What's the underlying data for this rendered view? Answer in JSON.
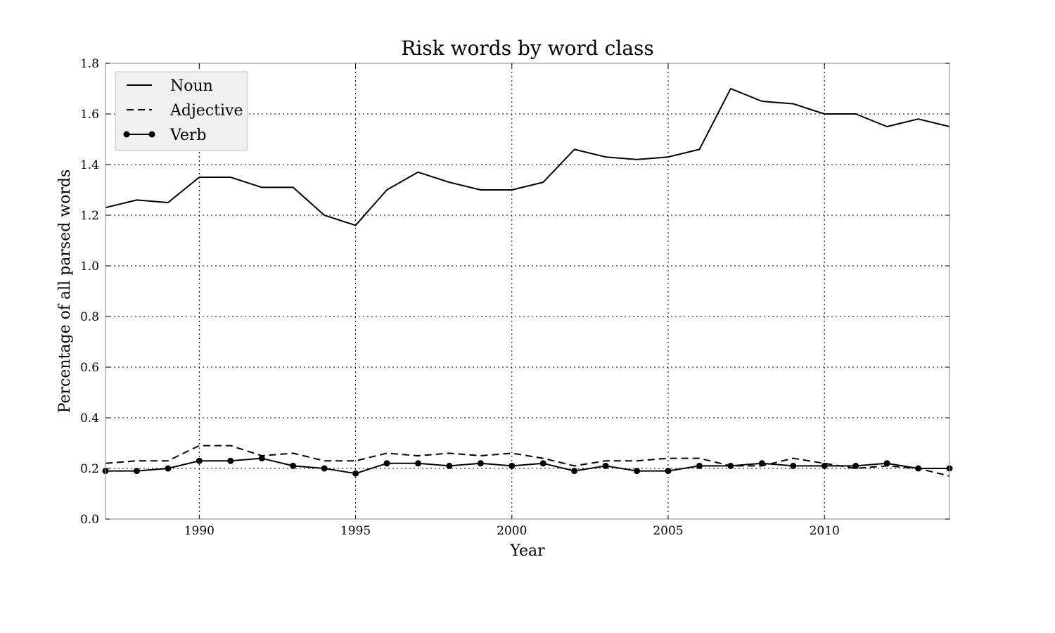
{
  "chart_data": {
    "type": "line",
    "title": "Risk words by word class",
    "xlabel": "Year",
    "ylabel": "Percentage of all parsed words",
    "xlim": [
      1987,
      2014
    ],
    "ylim": [
      0.0,
      1.8
    ],
    "xticks": [
      "1990",
      "1995",
      "2000",
      "2005",
      "2010"
    ],
    "yticks": [
      "0.0",
      "0.2",
      "0.4",
      "0.6",
      "0.8",
      "1.0",
      "1.2",
      "1.4",
      "1.6",
      "1.8"
    ],
    "grid": true,
    "legend": "top-left",
    "x": [
      1987,
      1988,
      1989,
      1990,
      1991,
      1992,
      1993,
      1994,
      1995,
      1996,
      1997,
      1998,
      1999,
      2000,
      2001,
      2002,
      2003,
      2004,
      2005,
      2006,
      2007,
      2008,
      2009,
      2010,
      2011,
      2012,
      2013,
      2014
    ],
    "series": [
      {
        "name": "Noun",
        "style": "solid",
        "markers": false,
        "color": "#000000",
        "values": [
          1.23,
          1.26,
          1.25,
          1.35,
          1.35,
          1.31,
          1.31,
          1.2,
          1.16,
          1.3,
          1.37,
          1.33,
          1.3,
          1.3,
          1.33,
          1.46,
          1.43,
          1.42,
          1.43,
          1.46,
          1.7,
          1.65,
          1.64,
          1.6,
          1.6,
          1.55,
          1.58,
          1.55
        ]
      },
      {
        "name": "Adjective",
        "style": "dashed",
        "markers": false,
        "color": "#000000",
        "values": [
          0.22,
          0.23,
          0.23,
          0.29,
          0.29,
          0.25,
          0.26,
          0.23,
          0.23,
          0.26,
          0.25,
          0.26,
          0.25,
          0.26,
          0.24,
          0.21,
          0.23,
          0.23,
          0.24,
          0.24,
          0.21,
          0.21,
          0.24,
          0.22,
          0.2,
          0.21,
          0.2,
          0.17
        ]
      },
      {
        "name": "Verb",
        "style": "solid",
        "markers": true,
        "color": "#000000",
        "values": [
          0.19,
          0.19,
          0.2,
          0.23,
          0.23,
          0.24,
          0.21,
          0.2,
          0.18,
          0.22,
          0.22,
          0.21,
          0.22,
          0.21,
          0.22,
          0.19,
          0.21,
          0.19,
          0.19,
          0.21,
          0.21,
          0.22,
          0.21,
          0.21,
          0.21,
          0.22,
          0.2,
          0.2
        ]
      }
    ]
  }
}
